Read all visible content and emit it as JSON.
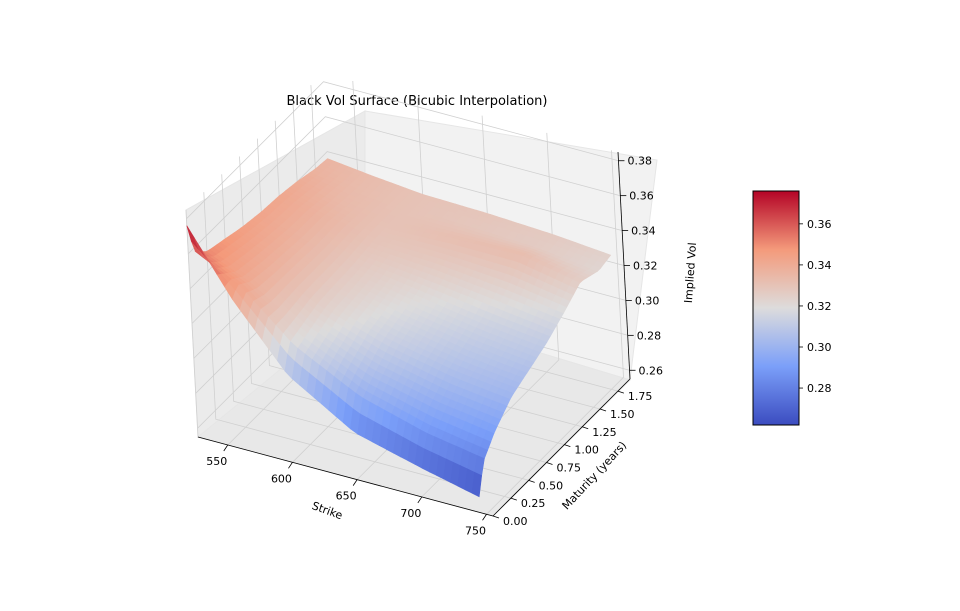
{
  "chart_data": {
    "type": "surface",
    "title": "Black Vol Surface (Bicubic Interpolation)",
    "xlabel": "Strike",
    "ylabel": "Maturity (years)",
    "zlabel": "Implied Vol",
    "x_ticks": [
      "550",
      "600",
      "650",
      "700",
      "750"
    ],
    "y_ticks": [
      "0.00",
      "0.25",
      "0.50",
      "0.75",
      "1.00",
      "1.25",
      "1.50",
      "1.75"
    ],
    "z_ticks": [
      "0.26",
      "0.28",
      "0.30",
      "0.32",
      "0.34",
      "0.36",
      "0.38"
    ],
    "xlim": [
      527,
      755
    ],
    "ylim": [
      0.0,
      1.92
    ],
    "zlim": [
      0.255,
      0.385
    ],
    "colormap": "coolwarm",
    "colorbar": {
      "range": [
        0.262,
        0.376
      ],
      "ticks": [
        "0.28",
        "0.30",
        "0.32",
        "0.34",
        "0.36"
      ]
    },
    "strikes": [
      527,
      560,
      600,
      650,
      700,
      745
    ],
    "maturities": [
      0.0,
      0.08,
      0.25,
      0.5,
      0.75,
      1.0,
      1.25,
      1.5,
      1.75,
      1.92
    ],
    "vol_surface": [
      [
        0.376,
        0.358,
        0.351,
        0.348,
        0.345,
        0.343,
        0.342,
        0.34,
        0.337,
        0.336
      ],
      [
        0.34,
        0.345,
        0.34,
        0.338,
        0.337,
        0.336,
        0.336,
        0.334,
        0.333,
        0.333
      ],
      [
        0.305,
        0.318,
        0.321,
        0.325,
        0.326,
        0.327,
        0.329,
        0.33,
        0.33,
        0.33
      ],
      [
        0.282,
        0.298,
        0.305,
        0.313,
        0.317,
        0.321,
        0.327,
        0.332,
        0.328,
        0.329
      ],
      [
        0.272,
        0.287,
        0.296,
        0.305,
        0.31,
        0.315,
        0.323,
        0.333,
        0.326,
        0.327
      ],
      [
        0.264,
        0.281,
        0.291,
        0.301,
        0.306,
        0.311,
        0.318,
        0.326,
        0.322,
        0.324
      ]
    ]
  }
}
